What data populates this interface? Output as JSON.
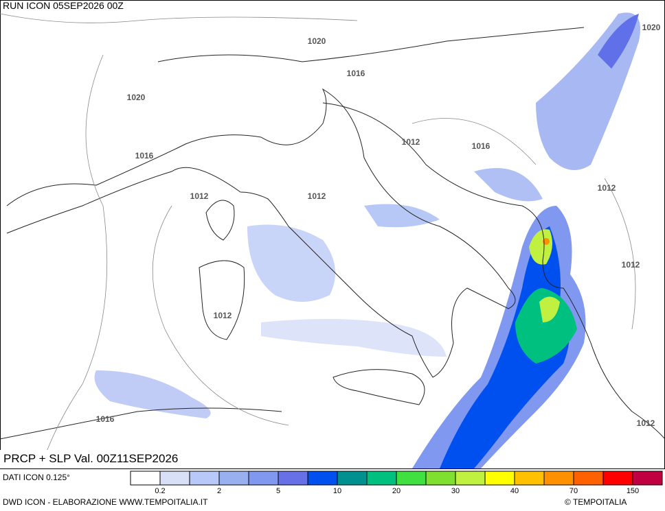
{
  "header": {
    "run": "RUN ICON 05SEP2026 00Z"
  },
  "isobars": [
    "1020",
    "1020",
    "1016",
    "1020",
    "1016",
    "1012",
    "1016",
    "1012",
    "1012",
    "1012",
    "1012",
    "1012",
    "1016",
    "1012"
  ],
  "map_title": "PRCP + SLP Val. 00Z11SEP2026",
  "legend": {
    "source": "DATI ICON 0.125°",
    "labels": [
      "0.2",
      "2",
      "5",
      "10",
      "20",
      "30",
      "40",
      "70",
      "150"
    ]
  },
  "footer": {
    "credit": "DWD ICON - ELABORAZIONE WWW.TEMPOITALIA.IT",
    "copyright": "© TEMPOITALIA"
  }
}
